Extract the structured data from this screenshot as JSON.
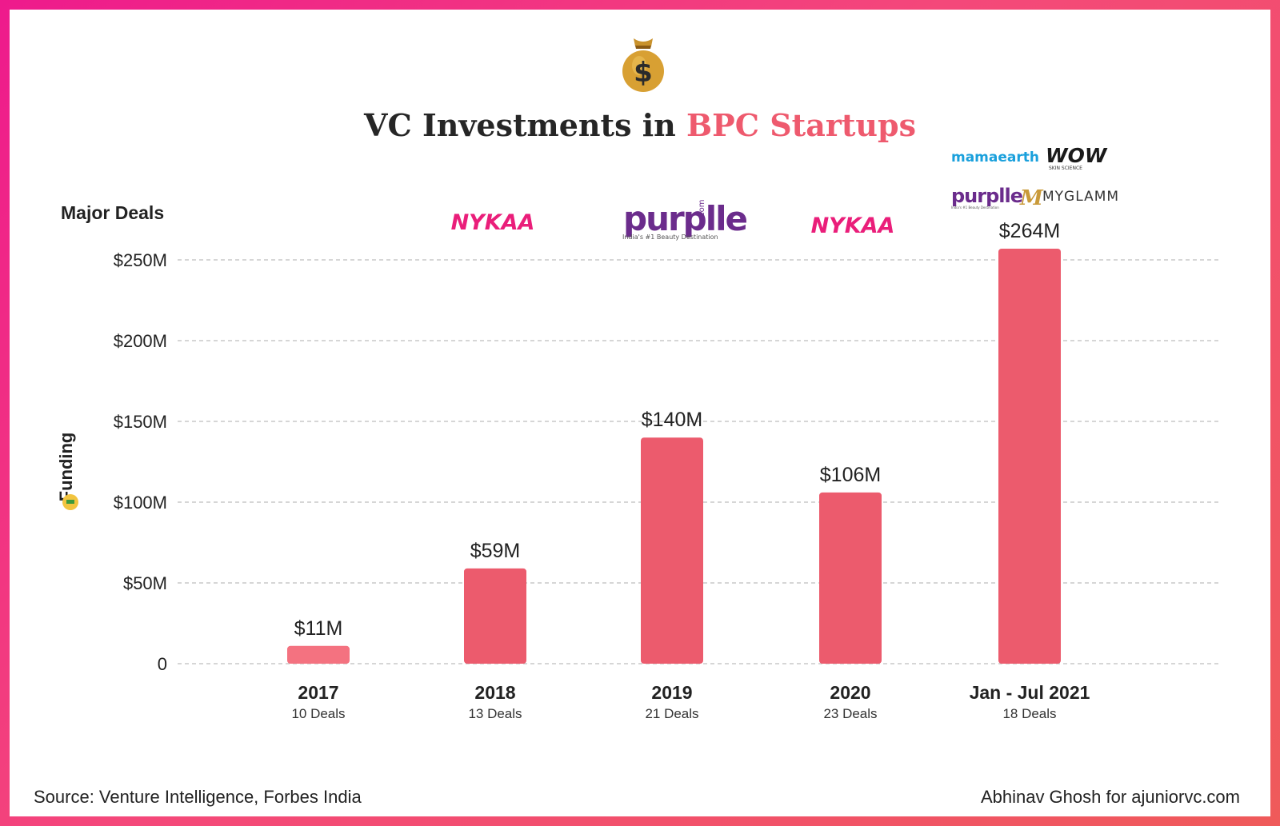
{
  "title_main": "VC Investments in",
  "title_accent": "BPC Startups",
  "source": "Source: Venture Intelligence, Forbes India",
  "credit": "Abhinav Ghosh for ajuniorvc.com",
  "major_deals_label": "Major Deals",
  "icon_moneybag": "money-bag-icon",
  "colors": {
    "bar": "#ec5b6d",
    "bar_light": "#f47280",
    "accent": "#ee5a6e",
    "grid": "#bdbdbd",
    "text": "#222222"
  },
  "logos": {
    "nykaa_2018": "NYKAA",
    "purplle_2019": "purplle",
    "purplle_dotcom": ".com",
    "purplle_tagline": "India's #1 Beauty Destination",
    "nykaa_2020": "NYKAA",
    "mamaearth": "mamaearth",
    "wow": "WOW",
    "wow_sub": "SKIN SCIENCE",
    "purplle_2021": "purplle",
    "purplle_2021_tagline": "India's #1 Beauty Destination",
    "myglamm": "MYGLAMM"
  },
  "chart_data": {
    "type": "bar",
    "title": "VC Investments in BPC Startups",
    "xlabel": "",
    "ylabel": "Funding",
    "ylim": [
      0,
      250
    ],
    "yticks": [
      0,
      50,
      100,
      150,
      200,
      250
    ],
    "ytick_labels": [
      "0",
      "$50M",
      "$100M",
      "$150M",
      "$200M",
      "$250M"
    ],
    "categories": [
      "2017",
      "2018",
      "2019",
      "2020",
      "Jan - Jul 2021"
    ],
    "values": [
      11,
      59,
      140,
      106,
      264
    ],
    "data_labels": [
      "$11M",
      "$59M",
      "$140M",
      "$106M",
      "$264M"
    ],
    "deals": [
      "10 Deals",
      "13 Deals",
      "21 Deals",
      "23 Deals",
      "18 Deals"
    ],
    "grid": true
  }
}
